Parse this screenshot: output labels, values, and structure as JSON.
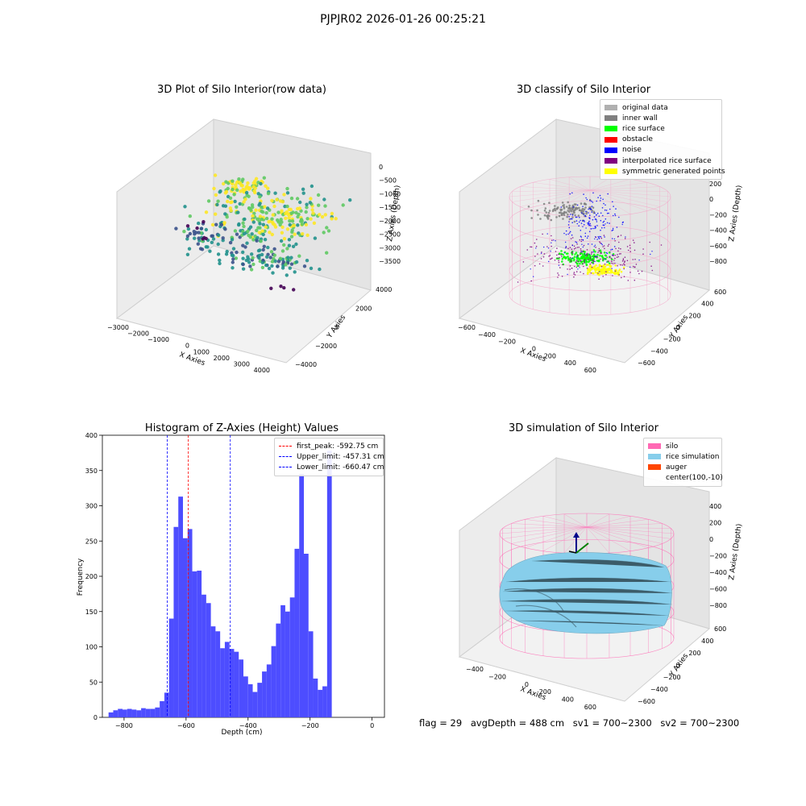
{
  "figure": {
    "suptitle": "PJPJR02 2026-01-26 00:25:21"
  },
  "chart_data": [
    {
      "type": "scatter",
      "title": "3D Plot of Silo Interior(row data)",
      "xlabel": "X Axies",
      "ylabel": "Y Axies",
      "zlabel": "Z Axies (Depth)",
      "xticks": [
        "−3000",
        "−2000",
        "−1000",
        "0",
        "1000",
        "2000",
        "3000",
        "4000"
      ],
      "yticks": [
        "−4000",
        "−2000",
        "0",
        "2000",
        "4000"
      ],
      "zticks": [
        "0",
        "−500",
        "−1000",
        "−1500",
        "−2000",
        "−2500",
        "−3000",
        "−3500"
      ],
      "colormap": [
        "#440154",
        "#3b528b",
        "#21918c",
        "#5ec962",
        "#fde725"
      ]
    },
    {
      "type": "scatter",
      "title": "3D classify of Silo Interior",
      "xlabel": "X Axies",
      "ylabel": "Y Axies",
      "zlabel": "Z Axies (Depth)",
      "xticks": [
        "−600",
        "−400",
        "−200",
        "0",
        "200",
        "400",
        "600"
      ],
      "yticks": [
        "−600",
        "−400",
        "−200",
        "0",
        "200",
        "400",
        "600"
      ],
      "zticks": [
        "200",
        "0",
        "−200",
        "−400",
        "−600",
        "−800"
      ],
      "legend": [
        {
          "label": "original data",
          "color": "#b0b0b0"
        },
        {
          "label": "inner wall",
          "color": "#808080"
        },
        {
          "label": "rice surface",
          "color": "#00ff00"
        },
        {
          "label": "obstacle",
          "color": "#ff0000"
        },
        {
          "label": "noise",
          "color": "#0000ff"
        },
        {
          "label": "interpolated rice surface",
          "color": "#800080"
        },
        {
          "label": "symmetric generated points",
          "color": "#ffff00"
        }
      ]
    },
    {
      "type": "bar",
      "title": "Histogram of Z-Axies (Height) Values",
      "xlabel": "Depth (cm)",
      "ylabel": "Frequency",
      "xlim": [
        -870,
        40
      ],
      "ylim": [
        0,
        400
      ],
      "xticks": [
        -800,
        -600,
        -400,
        -200,
        0
      ],
      "xtick_labels": [
        "−800",
        "−600",
        "−400",
        "−200",
        "0"
      ],
      "yticks": [
        0,
        50,
        100,
        150,
        200,
        250,
        300,
        350,
        400
      ],
      "bar_color": "#4d4dff",
      "bin_start": -850,
      "bin_width": 15,
      "values": [
        7,
        10,
        12,
        11,
        12,
        11,
        10,
        13,
        12,
        12,
        14,
        23,
        35,
        140,
        270,
        313,
        254,
        267,
        207,
        208,
        174,
        162,
        129,
        122,
        98,
        107,
        97,
        93,
        82,
        58,
        47,
        36,
        49,
        65,
        75,
        101,
        133,
        159,
        150,
        170,
        239,
        345,
        232,
        122,
        55,
        39,
        44,
        378
      ],
      "vlines": [
        {
          "x": -592.75,
          "color": "#ff0000",
          "label": "first_peak: -592.75 cm"
        },
        {
          "x": -457.31,
          "color": "#0000ff",
          "label": "Upper_limit: -457.31 cm"
        },
        {
          "x": -660.47,
          "color": "#0000ff",
          "label": "Lower_limit: -660.47 cm"
        }
      ]
    },
    {
      "type": "area",
      "title": "3D simulation of Silo Interior",
      "xlabel": "X Axies",
      "ylabel": "Y Axies",
      "zlabel": "Z Axies (Depth)",
      "xticks": [
        "−400",
        "−200",
        "0",
        "200",
        "400",
        "600"
      ],
      "yticks": [
        "−600",
        "−400",
        "−200",
        "0",
        "200",
        "400",
        "600"
      ],
      "zticks": [
        "400",
        "200",
        "0",
        "−200",
        "−400",
        "−600",
        "−800"
      ],
      "legend": [
        {
          "label": "silo",
          "color": "#ff69b4"
        },
        {
          "label": "rice simulation",
          "color": "#87ceeb"
        },
        {
          "label": "auger",
          "color": "#ff4500"
        },
        {
          "label": "center(100,-10)",
          "color": ""
        }
      ]
    }
  ],
  "footer": {
    "flag": "flag = 29",
    "avg_depth": "avgDepth = 488 cm",
    "sv1": "sv1 = 700~2300",
    "sv2": "sv2 = 700~2300"
  }
}
